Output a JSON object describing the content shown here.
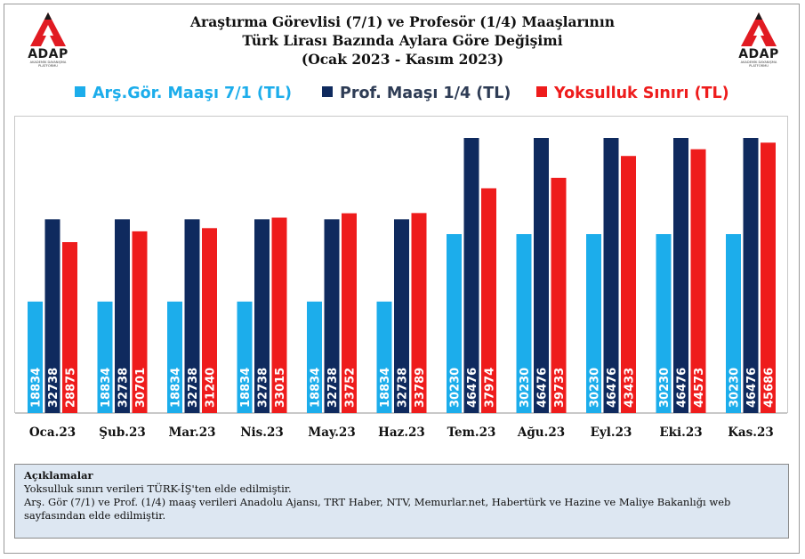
{
  "logo": {
    "name": "ADAP",
    "subtitle": "AKADEMİK DAYANIŞMA PLATFORMU",
    "color": "#e11b22"
  },
  "title": {
    "line1": "Araştırma Görevlisi (7/1) ve Profesör (1/4) Maaşlarının",
    "line2": "Türk Lirası Bazında Aylara Göre Değişimi",
    "line3": "(Ocak 2023 - Kasım 2023)"
  },
  "notes": {
    "heading": "Açıklamalar",
    "line1": "Yoksulluk sınırı verileri TÜRK-İŞ'ten elde edilmiştir.",
    "line2": "Arş. Gör (7/1) ve Prof. (1/4) maaş verileri Anadolu Ajansı, TRT Haber, NTV, Memurlar.net, Habertürk ve Hazine ve Maliye Bakanlığı web sayfasından elde edilmiştir."
  },
  "chart_data": {
    "type": "bar",
    "title": "Araştırma Görevlisi (7/1) ve Profesör (1/4) Maaşlarının Türk Lirası Bazında Aylara Göre Değişimi (Ocak 2023 - Kasım 2023)",
    "categories": [
      "Oca.23",
      "Şub.23",
      "Mar.23",
      "Nis.23",
      "May.23",
      "Haz.23",
      "Tem.23",
      "Ağu.23",
      "Eyl.23",
      "Eki.23",
      "Kas.23"
    ],
    "series": [
      {
        "name": "Arş.Gör. Maaşı 7/1 (TL)",
        "color": "#1cadeb",
        "values": [
          18834,
          18834,
          18834,
          18834,
          18834,
          18834,
          30230,
          30230,
          30230,
          30230,
          30230
        ]
      },
      {
        "name": "Prof. Maaşı 1/4 (TL)",
        "color": "#0f2a5e",
        "values": [
          32738,
          32738,
          32738,
          32738,
          32738,
          32738,
          46476,
          46476,
          46476,
          46476,
          46476
        ]
      },
      {
        "name": "Yoksulluk Sınırı (TL)",
        "color": "#ee1c1c",
        "values": [
          28875,
          30701,
          31240,
          33015,
          33752,
          33789,
          37974,
          39733,
          43433,
          44573,
          45686
        ]
      }
    ],
    "legend_colors": [
      "#1cadeb",
      "#2e3c55",
      "#ee1c1c"
    ],
    "xlabel": "",
    "ylabel": "",
    "ylim": [
      0,
      46476
    ],
    "grid": false,
    "legend_position": "top"
  }
}
